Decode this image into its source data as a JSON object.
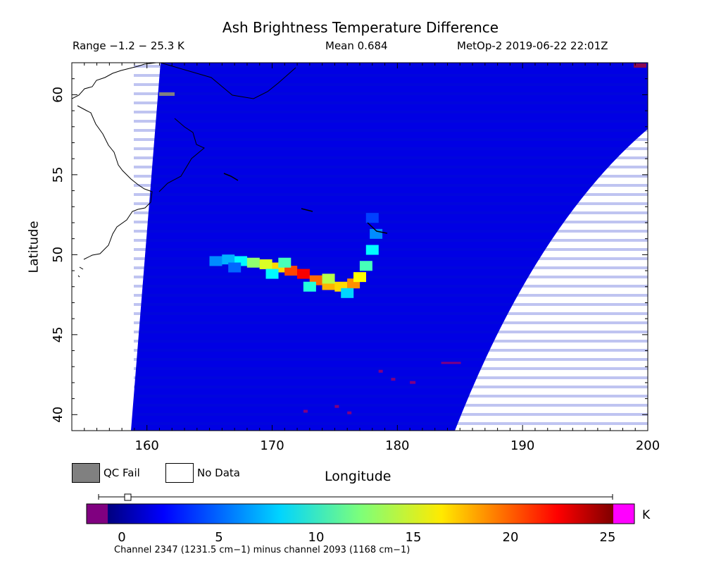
{
  "header": {
    "title": "Ash Brightness Temperature Difference",
    "range_text": "Range −1.2 − 25.3 K",
    "mean_text": "Mean 0.684",
    "satellite_text": "MetOp-2 2019-06-22 22:01Z"
  },
  "legend": {
    "qc_fail_label": "QC Fail",
    "no_data_label": "No Data",
    "qc_fail_color": "#808080",
    "no_data_color": "#ffffff"
  },
  "colorbar": {
    "unit": "K",
    "ticks": [
      0,
      5,
      10,
      15,
      20,
      25
    ],
    "range": [
      -1.2,
      25.3
    ],
    "under_color": "#800080",
    "over_color": "#ff00ff",
    "footnote": "Channel 2347 (1231.5 cm−1) minus channel 2093 (1168 cm−1)"
  },
  "chart_data": {
    "type": "heatmap",
    "title": "Ash Brightness Temperature Difference",
    "xlabel": "Longitude",
    "ylabel": "Latitude",
    "xlim": [
      154,
      200
    ],
    "ylim": [
      39,
      62
    ],
    "xticks": [
      160,
      170,
      180,
      190,
      200
    ],
    "yticks": [
      40,
      45,
      50,
      55,
      60
    ],
    "value_unit": "K",
    "value_range": [
      -1.2,
      25.3
    ],
    "mean": 0.684,
    "background_value": 0.5,
    "plume": [
      [
        165.5,
        49.6,
        5
      ],
      [
        166.5,
        49.7,
        6
      ],
      [
        167.5,
        49.6,
        8
      ],
      [
        168.5,
        49.5,
        12
      ],
      [
        169.5,
        49.4,
        14
      ],
      [
        170.5,
        49.2,
        16
      ],
      [
        171.5,
        49.0,
        20
      ],
      [
        172.5,
        48.8,
        22
      ],
      [
        173.5,
        48.4,
        19
      ],
      [
        174.5,
        48.1,
        17
      ],
      [
        175.5,
        48.0,
        16
      ],
      [
        176.5,
        48.2,
        18
      ],
      [
        177.0,
        48.6,
        15
      ],
      [
        177.5,
        49.3,
        10
      ],
      [
        178.0,
        50.3,
        8
      ],
      [
        178.3,
        51.3,
        5
      ],
      [
        178.0,
        52.3,
        3
      ],
      [
        167.0,
        49.2,
        4
      ],
      [
        170.0,
        48.8,
        8
      ],
      [
        173.0,
        48.0,
        9
      ],
      [
        176.0,
        47.6,
        7
      ],
      [
        171.0,
        49.5,
        10
      ],
      [
        174.5,
        48.5,
        13
      ]
    ]
  }
}
